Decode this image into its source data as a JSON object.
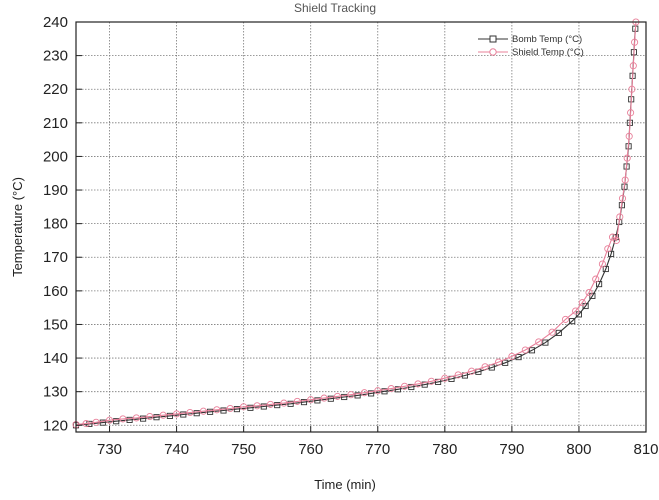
{
  "chart_data": {
    "type": "scatter",
    "title": "Shield Tracking",
    "xlabel": "Time (min)",
    "ylabel": "Temperature (°C)",
    "xlim": [
      725,
      810
    ],
    "ylim": [
      118,
      240
    ],
    "x_ticks": [
      730,
      740,
      750,
      760,
      770,
      780,
      790,
      800,
      810
    ],
    "y_ticks": [
      120,
      130,
      140,
      150,
      160,
      170,
      180,
      190,
      200,
      210,
      220,
      230,
      240
    ],
    "grid": true,
    "legend_position": "top-right",
    "series": [
      {
        "name": "Bomb Temp (°C)",
        "color": "#333333",
        "marker": "square",
        "x": [
          725,
          727,
          729,
          731,
          733,
          735,
          737,
          739,
          741,
          743,
          745,
          747,
          749,
          751,
          753,
          755,
          757,
          759,
          761,
          763,
          765,
          767,
          769,
          771,
          773,
          775,
          777,
          779,
          781,
          783,
          785,
          787,
          789,
          791,
          793,
          795,
          797,
          799,
          800,
          801,
          802,
          803,
          804,
          804.8,
          805.5,
          806,
          806.4,
          806.8,
          807.1,
          807.4,
          807.6,
          807.8,
          808,
          808.2,
          808.4
        ],
        "y": [
          120.0,
          120.4,
          120.8,
          121.2,
          121.6,
          122.0,
          122.4,
          122.8,
          123.2,
          123.6,
          124.0,
          124.4,
          124.8,
          125.2,
          125.6,
          126.0,
          126.4,
          126.9,
          127.4,
          127.9,
          128.4,
          128.9,
          129.5,
          130.1,
          130.7,
          131.4,
          132.1,
          132.9,
          133.8,
          134.8,
          135.9,
          137.2,
          138.6,
          140.3,
          142.3,
          144.6,
          147.5,
          151.0,
          153.0,
          155.5,
          158.5,
          162.0,
          166.5,
          171.0,
          176.0,
          180.5,
          185.5,
          191.0,
          197.0,
          203.0,
          210.0,
          217.0,
          224.0,
          231.0,
          238.0
        ]
      },
      {
        "name": "Shield Temp (°C)",
        "color": "#e8809a",
        "marker": "circle",
        "x": [
          725,
          726.5,
          728,
          730,
          732,
          734,
          736,
          738,
          740,
          742,
          744,
          746,
          748,
          750,
          752,
          754,
          756,
          758,
          760,
          762,
          764,
          766,
          768,
          770,
          772,
          774,
          776,
          778,
          780,
          782,
          784,
          786,
          788,
          790,
          792,
          794,
          796,
          798,
          799.5,
          800.5,
          801.5,
          802.5,
          803.5,
          804.3,
          805,
          805.6,
          806.1,
          806.5,
          806.9,
          807.2,
          807.5,
          807.7,
          807.9,
          808.1,
          808.3,
          808.5
        ],
        "y": [
          120.2,
          120.5,
          120.9,
          121.5,
          121.9,
          122.2,
          122.6,
          123.0,
          123.4,
          123.8,
          124.2,
          124.6,
          125.0,
          125.5,
          125.8,
          126.2,
          126.6,
          127.1,
          127.6,
          128.1,
          128.6,
          129.1,
          129.7,
          130.3,
          130.9,
          131.6,
          132.3,
          133.1,
          134.0,
          135.0,
          136.1,
          137.4,
          138.8,
          140.5,
          142.4,
          144.8,
          147.7,
          151.5,
          154.0,
          156.5,
          159.5,
          163.5,
          168.0,
          172.5,
          176.0,
          175.0,
          182.0,
          187.5,
          193.0,
          199.5,
          206.0,
          213.0,
          220.0,
          227.0,
          234.0,
          240.0
        ]
      }
    ]
  }
}
